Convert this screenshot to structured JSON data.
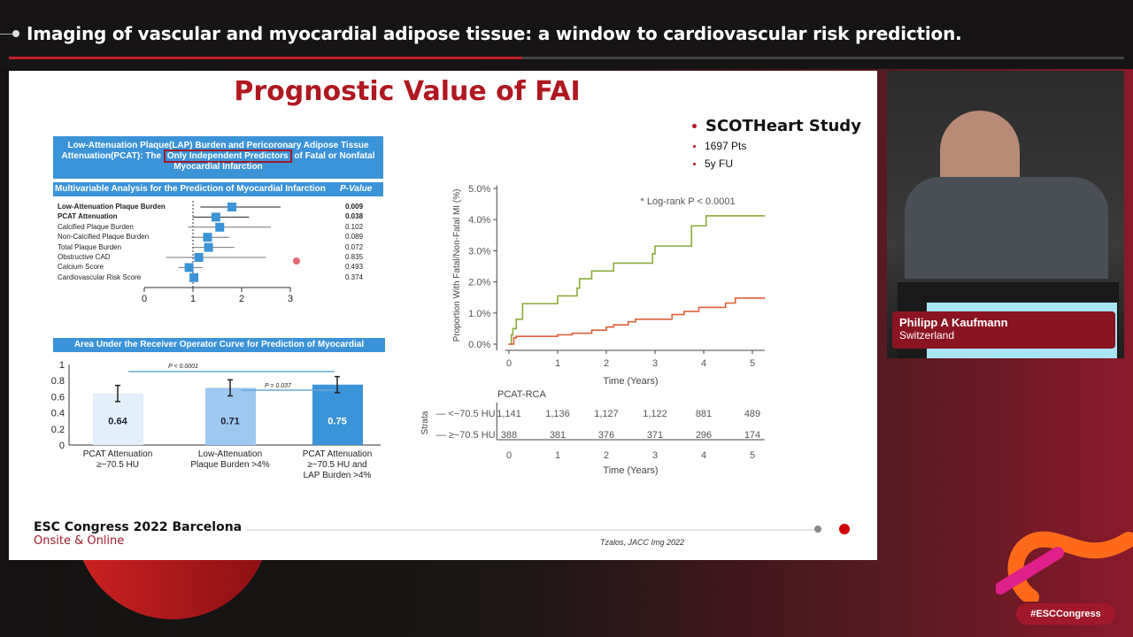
{
  "header": {
    "title": "Imaging of vascular and myocardial adipose tissue: a window to cardiovascular risk prediction.",
    "progress_percent": 46
  },
  "slide": {
    "title": "Prognostic Value of FAI",
    "forest": {
      "header_pre": "Low-Attenuation Plaque(LAP) Burden and Pericoronary Adipose Tissue Attenuation(PCAT): The",
      "header_highlight": "Only Independent Predictors",
      "header_post": "of Fatal or Nonfatal Myocardial Infarction",
      "subheader": "Multivariable Analysis for the Prediction of Myocardial Infarction",
      "pvalue_header": "P-Value",
      "xticks": [
        0,
        1,
        2,
        3
      ],
      "rows": [
        {
          "label": "Low-Attenuation Plaque Burden",
          "est": 1.8,
          "lo": 1.15,
          "hi": 2.8,
          "p": "0.009",
          "bold": true
        },
        {
          "label": "PCAT Attenuation",
          "est": 1.47,
          "lo": 1.0,
          "hi": 2.15,
          "p": "0.038",
          "bold": true
        },
        {
          "label": "Calcified Plaque Burden",
          "est": 1.55,
          "lo": 0.9,
          "hi": 2.6,
          "p": "0.102"
        },
        {
          "label": "Non-Calcified Plaque Burden",
          "est": 1.3,
          "lo": 0.97,
          "hi": 1.75,
          "p": "0.089"
        },
        {
          "label": "Total Plaque Burden",
          "est": 1.32,
          "lo": 0.98,
          "hi": 1.85,
          "p": "0.072"
        },
        {
          "label": "Obstructive CAD",
          "est": 1.12,
          "lo": 0.45,
          "hi": 2.5,
          "p": "0.835"
        },
        {
          "label": "Calcium Score",
          "est": 0.92,
          "lo": 0.7,
          "hi": 1.2,
          "p": "0.493"
        },
        {
          "label": "Cardiovascular Risk Score",
          "est": 1.02,
          "lo": 0.98,
          "hi": 1.05,
          "p": "0.374"
        }
      ]
    },
    "auc": {
      "header": "Area Under the Receiver Operator Curve for Prediction of Myocardial Infarction",
      "yticks": [
        "0",
        "0.2",
        "0.4",
        "0.6",
        "0.8",
        "1"
      ],
      "bars": [
        {
          "label1": "PCAT Attenuation",
          "label2": "≥−70.5 HU",
          "label3": "",
          "value": 0.64,
          "err_lo": 0.54,
          "err_hi": 0.74,
          "color": "#e3effa"
        },
        {
          "label1": "Low-Attenuation",
          "label2": "Plaque Burden >4%",
          "label3": "",
          "value": 0.71,
          "err_lo": 0.61,
          "err_hi": 0.81,
          "color": "#9ec8f0"
        },
        {
          "label1": "PCAT Attenuation",
          "label2": "≥−70.5 HU and",
          "label3": "LAP Burden >4%",
          "value": 0.75,
          "err_lo": 0.65,
          "err_hi": 0.85,
          "color": "#3b93d8"
        }
      ],
      "p1": "P < 0.0001",
      "p2": "P = 0.037"
    },
    "study": {
      "title": "SCOTHeart Study",
      "items": [
        "1697 Pts",
        "5y FU"
      ]
    },
    "chart_data": {
      "type": "line",
      "ylabel": "Proportion With Fatal/Non-Fatal MI (%)",
      "xlabel": "Time (Years)",
      "yticks": [
        "0.0%",
        "1.0%",
        "2.0%",
        "3.0%",
        "4.0%",
        "5.0%"
      ],
      "xticks": [
        "0",
        "1",
        "2",
        "3",
        "4",
        "5"
      ],
      "xlim": [
        0,
        5.25
      ],
      "ylim": [
        0,
        5
      ],
      "annotation": "* Log-rank P < 0.0001",
      "series": [
        {
          "color": "#8aaa3c",
          "points": [
            [
              0,
              0
            ],
            [
              0.05,
              0.3
            ],
            [
              0.08,
              0.5
            ],
            [
              0.15,
              0.8
            ],
            [
              0.28,
              1.3
            ],
            [
              1.0,
              1.55
            ],
            [
              1.4,
              1.8
            ],
            [
              1.45,
              2.1
            ],
            [
              1.7,
              2.35
            ],
            [
              2.15,
              2.6
            ],
            [
              2.95,
              2.9
            ],
            [
              3.0,
              3.15
            ],
            [
              3.75,
              3.8
            ],
            [
              4.05,
              4.12
            ],
            [
              5.25,
              4.12
            ]
          ]
        },
        {
          "color": "#e0603a",
          "points": [
            [
              0,
              0
            ],
            [
              0.1,
              0.2
            ],
            [
              0.15,
              0.25
            ],
            [
              1.0,
              0.3
            ],
            [
              1.3,
              0.35
            ],
            [
              1.7,
              0.45
            ],
            [
              2.0,
              0.55
            ],
            [
              2.15,
              0.62
            ],
            [
              2.45,
              0.72
            ],
            [
              2.6,
              0.8
            ],
            [
              3.35,
              0.95
            ],
            [
              3.6,
              1.05
            ],
            [
              3.9,
              1.18
            ],
            [
              4.45,
              1.32
            ],
            [
              4.65,
              1.48
            ],
            [
              5.25,
              1.48
            ]
          ]
        }
      ],
      "risk_table": {
        "title": "PCAT-RCA",
        "strata_label": "Strata",
        "rows": [
          {
            "label": "— <−70.5 HU",
            "values": [
              "1,141",
              "1,136",
              "1,127",
              "1,122",
              "881",
              "489"
            ]
          },
          {
            "label": "— ≥−70.5 HU",
            "values": [
              "388",
              "381",
              "376",
              "371",
              "296",
              "174"
            ]
          }
        ]
      }
    },
    "footer": {
      "line1": "ESC Congress 2022 Barcelona",
      "line2": "Onsite & Online",
      "citation": "Tzalos, JACC Img 2022"
    }
  },
  "speaker": {
    "name": "Philipp A Kaufmann",
    "country": "Switzerland"
  },
  "hashtag": "#ESCCongress"
}
